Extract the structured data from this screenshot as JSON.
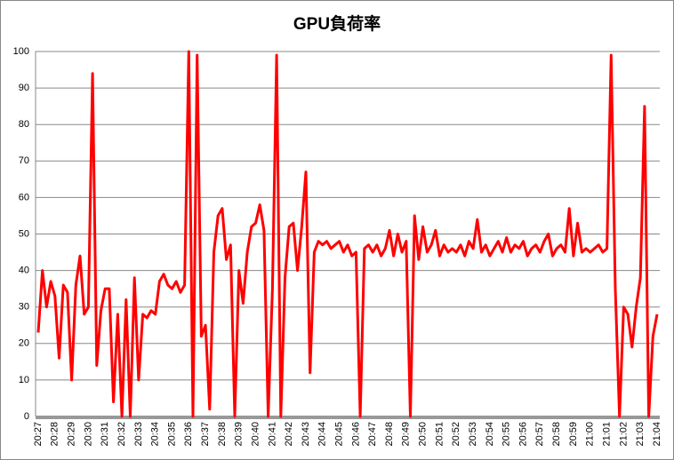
{
  "chart_data": {
    "type": "line",
    "title": "GPU負荷率",
    "categories": [
      "20:27",
      null,
      null,
      null,
      "20:28",
      null,
      null,
      null,
      "20:29",
      null,
      null,
      null,
      "20:30",
      null,
      null,
      null,
      "20:31",
      null,
      null,
      null,
      "20:32",
      null,
      null,
      null,
      "20:33",
      null,
      null,
      null,
      "20:34",
      null,
      null,
      null,
      "20:35",
      null,
      null,
      null,
      "20:36",
      null,
      null,
      null,
      "20:37",
      null,
      null,
      null,
      "20:38",
      null,
      null,
      null,
      "20:39",
      null,
      null,
      null,
      "20:40",
      null,
      null,
      null,
      "20:41",
      null,
      null,
      null,
      "20:42",
      null,
      null,
      null,
      "20:43",
      null,
      null,
      null,
      "20:44",
      null,
      null,
      null,
      "20:45",
      null,
      null,
      null,
      "20:46",
      null,
      null,
      null,
      "20:47",
      null,
      null,
      null,
      "20:48",
      null,
      null,
      null,
      "20:49",
      null,
      null,
      null,
      "20:50",
      null,
      null,
      null,
      "20:51",
      null,
      null,
      null,
      "20:52",
      null,
      null,
      null,
      "20:53",
      null,
      null,
      null,
      "20:54",
      null,
      null,
      null,
      "20:55",
      null,
      null,
      null,
      "20:56",
      null,
      null,
      null,
      "20:57",
      null,
      null,
      null,
      "20:58",
      null,
      null,
      null,
      "20:59",
      null,
      null,
      null,
      "21:00",
      null,
      null,
      null,
      "21:01",
      null,
      null,
      null,
      "21:02",
      null,
      null,
      null,
      "21:03",
      null,
      null,
      null,
      "21:04"
    ],
    "values": [
      23,
      40,
      30,
      37,
      33,
      16,
      36,
      34,
      10,
      36,
      44,
      28,
      30,
      94,
      14,
      29,
      35,
      35,
      4,
      28,
      0,
      32,
      0,
      38,
      10,
      28,
      27,
      29,
      28,
      37,
      39,
      36,
      35,
      37,
      34,
      36,
      100,
      0,
      99,
      22,
      25,
      2,
      45,
      55,
      57,
      43,
      47,
      0,
      40,
      31,
      45,
      52,
      53,
      58,
      51,
      0,
      35,
      99,
      0,
      38,
      52,
      53,
      40,
      52,
      67,
      12,
      45,
      48,
      47,
      48,
      46,
      47,
      48,
      45,
      47,
      44,
      45,
      0,
      46,
      47,
      45,
      47,
      44,
      46,
      51,
      44,
      50,
      45,
      48,
      0,
      55,
      43,
      52,
      45,
      47,
      51,
      44,
      47,
      45,
      46,
      45,
      47,
      44,
      48,
      46,
      54,
      45,
      47,
      44,
      46,
      48,
      45,
      49,
      45,
      47,
      46,
      48,
      44,
      46,
      47,
      45,
      48,
      50,
      44,
      46,
      47,
      45,
      57,
      44,
      53,
      45,
      46,
      45,
      46,
      47,
      45,
      46,
      99,
      35,
      0,
      30,
      28,
      19,
      30,
      38,
      85,
      0,
      22,
      28
    ],
    "color": "#ff0000",
    "ylim": [
      0,
      100
    ],
    "yticks": [
      0,
      10,
      20,
      30,
      40,
      50,
      60,
      70,
      80,
      90,
      100
    ],
    "grid": true
  }
}
